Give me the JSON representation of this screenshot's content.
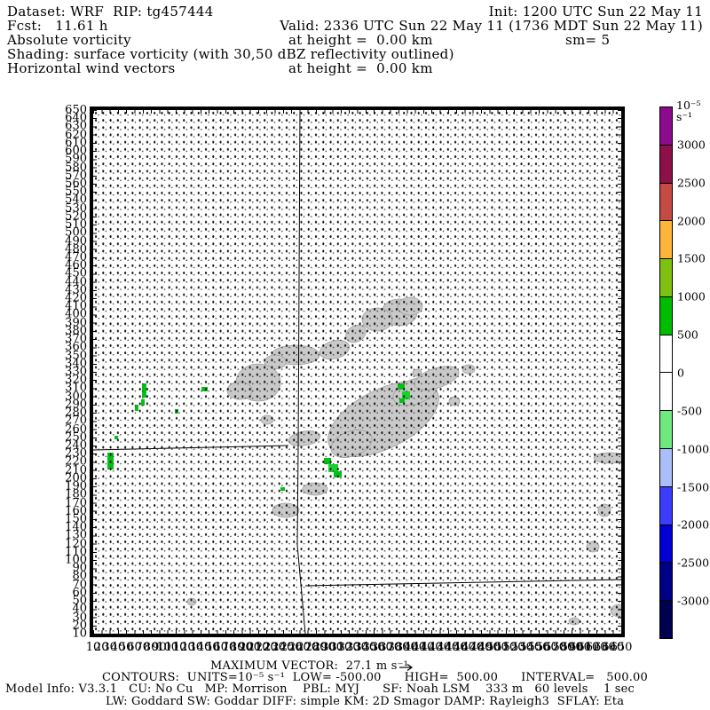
{
  "header": {
    "dataset": "Dataset: WRF  RIP: tg457444",
    "init": "Init: 1200 UTC Sun 22 May 11",
    "fcst": "Fcst:   11.61 h",
    "valid": "Valid: 2336 UTC Sun 22 May 11 (1736 MDT Sun 22 May 11)",
    "field_title": "Absolute vorticity",
    "field_height": "at height =  0.00 km",
    "smoothing": "sm= 5",
    "shading_desc": "Shading: surface vorticity (with 30,50 dBZ reflectivity outlined)",
    "vectors_title": "Horizontal wind vectors",
    "vectors_height": "at height =  0.00 km"
  },
  "footer": {
    "max_vector": "MAXIMUM VECTOR:  27.1 m s⁻¹",
    "contours": "CONTOURS:  UNITS=10⁻⁵ s⁻¹  LOW= -500.00      HIGH=  500.00      INTERVAL=   500.00",
    "model_info_1": "Model Info: V3.3.1   CU: No Cu   MP: Morrison    PBL: MYJ      SF: Noah LSM    333 m   60 levels    1 sec",
    "model_info_2": "LW: Goddard SW: Goddar DIFF: simple KM: 2D Smagor DAMP: Rayleigh3  SFLAY: Eta"
  },
  "chart_data": {
    "type": "heatmap",
    "description": "WRF/RIP surface absolute vorticity shading with 30,50 dBZ reflectivity outlined and horizontal wind vectors at height 0.00 km",
    "x_axis": {
      "min": 10,
      "max": 650,
      "step": 10
    },
    "y_axis": {
      "min": 10,
      "max": 650,
      "step": 10
    },
    "max_vector_ms": 27.1,
    "contour_low": -500.0,
    "contour_high": 500.0,
    "contour_interval": 500.0,
    "colorbar": {
      "units": "10⁻⁵ s⁻¹",
      "boundaries": [
        3000,
        2500,
        2000,
        1500,
        1000,
        500,
        0,
        -500,
        -1000,
        -1500,
        -2000,
        -2500,
        -3000
      ],
      "colors_top_to_bottom": [
        "#8c0a8c",
        "#8d1048",
        "#c44a44",
        "#ffb43c",
        "#7fc010",
        "#00bc00",
        "#ffffff",
        "#ffffff",
        "#70e880",
        "#aabef8",
        "#3c3cfc",
        "#0000d4",
        "#000086",
        "#000050"
      ]
    },
    "colors": {
      "reflectivity_fill": "#c9c9c9",
      "reflectivity_outline": "#9e9e9e",
      "vorticity_fill": "#00c214"
    },
    "reflectivity_regions": [
      [
        345,
        228,
        20,
        15,
        0
      ],
      [
        320,
        236,
        17,
        13,
        0
      ],
      [
        357,
        221,
        14,
        10,
        0
      ],
      [
        296,
        252,
        12,
        9,
        -30
      ],
      [
        272,
        270,
        17,
        10,
        -15
      ],
      [
        228,
        276,
        27,
        11,
        0
      ],
      [
        205,
        284,
        12,
        8,
        0
      ],
      [
        186,
        307,
        25,
        21,
        0
      ],
      [
        165,
        316,
        14,
        10,
        0
      ],
      [
        196,
        349,
        7,
        5,
        0
      ],
      [
        327,
        348,
        68,
        33,
        -27
      ],
      [
        291,
        376,
        24,
        14,
        -20
      ],
      [
        363,
        317,
        26,
        14,
        -20
      ],
      [
        387,
        302,
        26,
        11,
        -18
      ],
      [
        423,
        292,
        7,
        5,
        0
      ],
      [
        407,
        328,
        6,
        5,
        0
      ],
      [
        365,
        296,
        5,
        4,
        0
      ],
      [
        238,
        370,
        18,
        8,
        -10
      ],
      [
        250,
        427,
        14,
        7,
        0
      ],
      [
        217,
        451,
        15,
        8,
        0
      ],
      [
        582,
        392,
        18,
        6,
        0
      ],
      [
        576,
        451,
        7,
        7,
        0
      ],
      [
        563,
        492,
        7,
        6,
        0
      ],
      [
        593,
        564,
        10,
        7,
        0
      ],
      [
        542,
        576,
        6,
        4,
        0
      ],
      [
        111,
        554,
        5,
        4,
        0
      ]
    ],
    "vorticity_cells": [
      [
        55,
        308,
        5,
        16
      ],
      [
        54,
        326,
        4,
        7
      ],
      [
        47,
        332,
        4,
        7
      ],
      [
        92,
        337,
        4,
        5
      ],
      [
        122,
        312,
        7,
        5
      ],
      [
        16,
        386,
        7,
        19
      ],
      [
        24,
        367,
        4,
        4
      ],
      [
        343,
        308,
        8,
        7
      ],
      [
        348,
        317,
        9,
        9,
        "#16d42a"
      ],
      [
        345,
        325,
        6,
        5
      ],
      [
        260,
        392,
        8,
        7
      ],
      [
        265,
        399,
        11,
        9,
        "#16d42a"
      ],
      [
        271,
        407,
        9,
        7
      ],
      [
        211,
        425,
        5,
        4
      ]
    ],
    "map_boundary_lines": [
      [
        [
          233,
          0
        ],
        [
          231,
          380
        ],
        [
          230,
          490
        ],
        [
          239,
          590
        ]
      ],
      [
        [
          0,
          383
        ],
        [
          220,
          378
        ]
      ],
      [
        [
          239,
          536
        ],
        [
          595,
          529
        ]
      ]
    ]
  }
}
